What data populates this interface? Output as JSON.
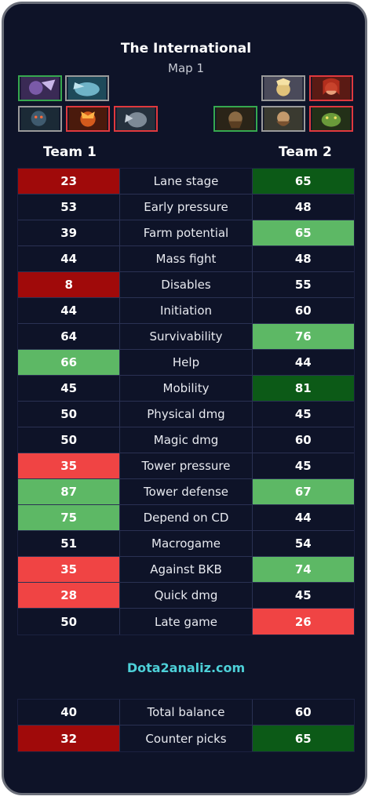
{
  "header": {
    "title": "The International",
    "subtitle": "Map 1"
  },
  "teams": {
    "left": "Team 1",
    "right": "Team 2"
  },
  "colors": {
    "darkred": "#a00a0a",
    "red": "#f04444",
    "lightgreen": "#5db865",
    "darkgreen": "#0c5a17",
    "panel": "#0e1328",
    "brand": "#4dd0d8"
  },
  "heroes_team1": [
    {
      "icon": "hero-portrait-icon",
      "border": "green"
    },
    {
      "icon": "hero-portrait-icon",
      "border": "none"
    },
    {
      "icon": "hero-portrait-icon",
      "border": "none"
    },
    {
      "icon": "hero-portrait-icon",
      "border": "red"
    },
    {
      "icon": "hero-portrait-icon",
      "border": "red"
    }
  ],
  "heroes_team2": [
    {
      "icon": "hero-portrait-icon",
      "border": "none"
    },
    {
      "icon": "hero-portrait-icon",
      "border": "red"
    },
    {
      "icon": "hero-portrait-icon",
      "border": "green"
    },
    {
      "icon": "hero-portrait-icon",
      "border": "none"
    },
    {
      "icon": "hero-portrait-icon",
      "border": "red"
    }
  ],
  "stats": [
    {
      "label": "Lane stage",
      "t1": "23",
      "t2": "65",
      "c1": "darkred",
      "c2": "darkgreen"
    },
    {
      "label": "Early pressure",
      "t1": "53",
      "t2": "48",
      "c1": "",
      "c2": ""
    },
    {
      "label": "Farm potential",
      "t1": "39",
      "t2": "65",
      "c1": "",
      "c2": "lightgreen"
    },
    {
      "label": "Mass fight",
      "t1": "44",
      "t2": "48",
      "c1": "",
      "c2": ""
    },
    {
      "label": "Disables",
      "t1": "8",
      "t2": "55",
      "c1": "darkred",
      "c2": ""
    },
    {
      "label": "Initiation",
      "t1": "44",
      "t2": "60",
      "c1": "",
      "c2": ""
    },
    {
      "label": "Survivability",
      "t1": "64",
      "t2": "76",
      "c1": "",
      "c2": "lightgreen"
    },
    {
      "label": "Help",
      "t1": "66",
      "t2": "44",
      "c1": "lightgreen",
      "c2": ""
    },
    {
      "label": "Mobility",
      "t1": "45",
      "t2": "81",
      "c1": "",
      "c2": "darkgreen"
    },
    {
      "label": "Physical dmg",
      "t1": "50",
      "t2": "45",
      "c1": "",
      "c2": ""
    },
    {
      "label": "Magic dmg",
      "t1": "50",
      "t2": "60",
      "c1": "",
      "c2": ""
    },
    {
      "label": "Tower pressure",
      "t1": "35",
      "t2": "45",
      "c1": "red",
      "c2": ""
    },
    {
      "label": "Tower defense",
      "t1": "87",
      "t2": "67",
      "c1": "lightgreen",
      "c2": "lightgreen"
    },
    {
      "label": "Depend on CD",
      "t1": "75",
      "t2": "44",
      "c1": "lightgreen",
      "c2": ""
    },
    {
      "label": "Macrogame",
      "t1": "51",
      "t2": "54",
      "c1": "",
      "c2": ""
    },
    {
      "label": "Against BKB",
      "t1": "35",
      "t2": "74",
      "c1": "red",
      "c2": "lightgreen"
    },
    {
      "label": "Quick dmg",
      "t1": "28",
      "t2": "45",
      "c1": "red",
      "c2": ""
    },
    {
      "label": "Late game",
      "t1": "50",
      "t2": "26",
      "c1": "",
      "c2": "red"
    }
  ],
  "brand": "Dota2analiz.com",
  "summary": [
    {
      "label": "Total balance",
      "t1": "40",
      "t2": "60",
      "c1": "",
      "c2": ""
    },
    {
      "label": "Counter picks",
      "t1": "32",
      "t2": "65",
      "c1": "darkred",
      "c2": "darkgreen"
    }
  ]
}
